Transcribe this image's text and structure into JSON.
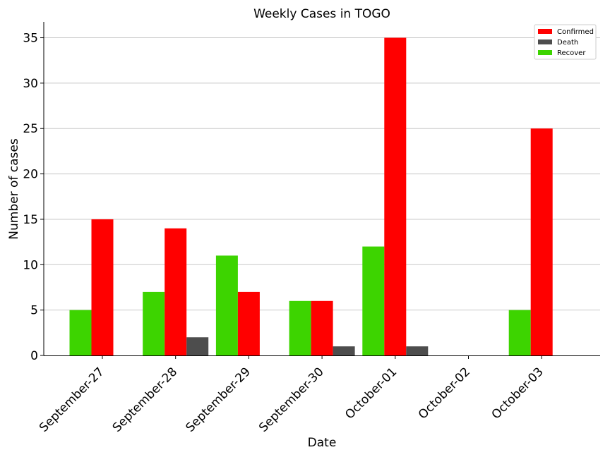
{
  "chart_data": {
    "type": "bar",
    "title": "Weekly Cases in TOGO",
    "xlabel": "Date",
    "ylabel": "Number of cases",
    "categories": [
      "September-27",
      "September-28",
      "September-29",
      "September-30",
      "October-01",
      "October-02",
      "October-03"
    ],
    "series": [
      {
        "name": "Recover",
        "color": "#3dd400",
        "values": [
          5,
          7,
          11,
          6,
          12,
          0,
          5
        ]
      },
      {
        "name": "Confirmed",
        "color": "#ff0000",
        "values": [
          15,
          14,
          7,
          6,
          35,
          0,
          25
        ]
      },
      {
        "name": "Death",
        "color": "#4d4d4d",
        "values": [
          0,
          2,
          0,
          1,
          1,
          0,
          0
        ]
      }
    ],
    "legend_order": [
      "Confirmed",
      "Death",
      "Recover"
    ],
    "ylim": [
      0,
      36.75
    ],
    "yticks": [
      0,
      5,
      10,
      15,
      20,
      25,
      30,
      35
    ],
    "grid": "horizontal",
    "legend_position": "top-right",
    "xtick_rotation": -45
  }
}
